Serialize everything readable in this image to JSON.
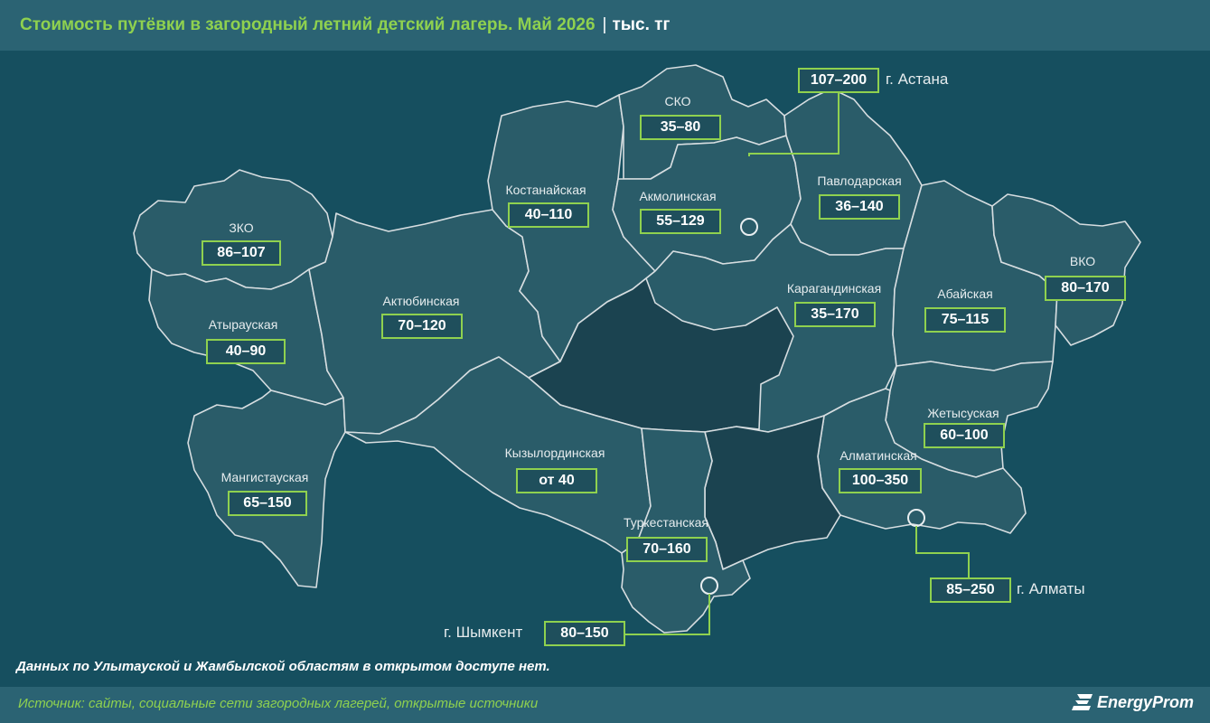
{
  "header": {
    "title": "Стоимость путёвки в загородный летний детский лагерь. Май 2026",
    "separator": "|",
    "unit": "тыс. тг"
  },
  "regions": [
    {
      "id": "zko",
      "name": "ЗКО",
      "value": "86–107"
    },
    {
      "id": "atyrau",
      "name": "Атырауская",
      "value": "40–90"
    },
    {
      "id": "mangistau",
      "name": "Мангистауская",
      "value": "65–150"
    },
    {
      "id": "aktobe",
      "name": "Актюбинская",
      "value": "70–120"
    },
    {
      "id": "kostanay",
      "name": "Костанайская",
      "value": "40–110"
    },
    {
      "id": "sko",
      "name": "СКО",
      "value": "35–80"
    },
    {
      "id": "akmola",
      "name": "Акмолинская",
      "value": "55–129"
    },
    {
      "id": "pavlodar",
      "name": "Павлодарская",
      "value": "36–140"
    },
    {
      "id": "karaganda",
      "name": "Карагандинская",
      "value": "35–170"
    },
    {
      "id": "abay",
      "name": "Абайская",
      "value": "75–115"
    },
    {
      "id": "vko",
      "name": "ВКО",
      "value": "80–170"
    },
    {
      "id": "zhetysu",
      "name": "Жетысуская",
      "value": "60–100"
    },
    {
      "id": "almaty_region",
      "name": "Алматинская",
      "value": "100–350"
    },
    {
      "id": "kyzylorda",
      "name": "Кызылординская",
      "value": "от 40"
    },
    {
      "id": "turkestan",
      "name": "Туркестанская",
      "value": "70–160"
    }
  ],
  "cities": [
    {
      "id": "astana",
      "name": "г. Астана",
      "value": "107–200"
    },
    {
      "id": "almaty",
      "name": "г. Алматы",
      "value": "85–250"
    },
    {
      "id": "shymkent",
      "name": "г. Шымкент",
      "value": "80–150"
    }
  ],
  "note": "Данных по Улытауской и Жамбылской областям в открытом доступе нет.",
  "source": "Источник: сайты, социальные сети загородных лагерей, открытые источники",
  "logo": "EnergyProm",
  "colors": {
    "background": "#164f5f",
    "bars": "#2b6373",
    "region_fill": "#2a5c69",
    "no_data_fill": "#1b4350",
    "accent_green": "#8fd14f",
    "border": "#d6dde0"
  }
}
